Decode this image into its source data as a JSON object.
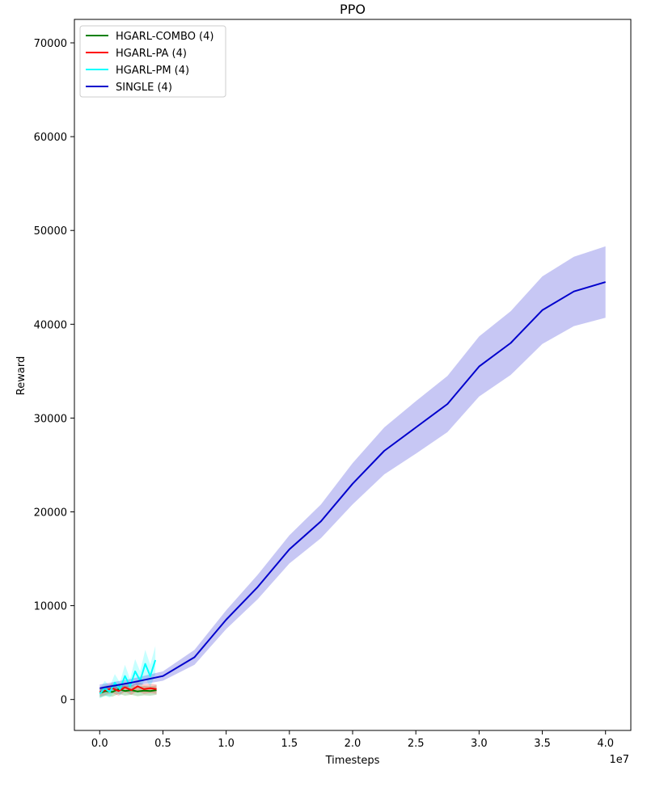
{
  "chart_data": {
    "type": "line",
    "title": "PPO",
    "xlabel": "Timesteps",
    "ylabel": "Reward",
    "x_offset_label": "1e7",
    "xlim": [
      -0.2,
      4.2
    ],
    "ylim": [
      -3300,
      72500
    ],
    "x_ticks": [
      0.0,
      0.5,
      1.0,
      1.5,
      2.0,
      2.5,
      3.0,
      3.5,
      4.0
    ],
    "x_tick_labels": [
      "0.0",
      "0.5",
      "1.0",
      "1.5",
      "2.0",
      "2.5",
      "3.0",
      "3.5",
      "4.0"
    ],
    "y_ticks": [
      0,
      10000,
      20000,
      30000,
      40000,
      50000,
      60000,
      70000
    ],
    "y_tick_labels": [
      "0",
      "10000",
      "20000",
      "30000",
      "40000",
      "50000",
      "60000",
      "70000"
    ],
    "legend_position": "top-left",
    "grid": false,
    "series": [
      {
        "name": "HGARL-COMBO (4)",
        "color": "#008000",
        "x": [
          0.0,
          0.05,
          0.1,
          0.15,
          0.2,
          0.25,
          0.3,
          0.35,
          0.4,
          0.45
        ],
        "y": [
          700,
          900,
          800,
          1100,
          900,
          1000,
          850,
          950,
          900,
          1000
        ],
        "band": [
          500,
          500,
          500,
          500,
          500,
          500,
          500,
          500,
          500,
          500
        ]
      },
      {
        "name": "HGARL-PA (4)",
        "color": "#ff0000",
        "x": [
          0.0,
          0.05,
          0.1,
          0.15,
          0.2,
          0.25,
          0.3,
          0.35,
          0.4,
          0.45
        ],
        "y": [
          800,
          1000,
          1200,
          900,
          1300,
          1000,
          1400,
          1100,
          1200,
          1100
        ],
        "band": [
          500,
          500,
          500,
          500,
          500,
          500,
          500,
          500,
          500,
          500
        ]
      },
      {
        "name": "HGARL-PM (4)",
        "color": "#00ffff",
        "x": [
          0.0,
          0.04,
          0.08,
          0.12,
          0.16,
          0.2,
          0.24,
          0.28,
          0.32,
          0.36,
          0.4,
          0.44
        ],
        "y": [
          600,
          1200,
          800,
          1800,
          1100,
          2500,
          1400,
          3000,
          2000,
          3800,
          2500,
          4200
        ],
        "band": [
          500,
          800,
          600,
          900,
          700,
          1200,
          800,
          1300,
          1000,
          1500,
          1200,
          1500
        ]
      },
      {
        "name": "SINGLE (4)",
        "color": "#0000cc",
        "x": [
          0.0,
          0.25,
          0.5,
          0.75,
          1.0,
          1.25,
          1.5,
          1.75,
          2.0,
          2.25,
          2.5,
          2.75,
          3.0,
          3.25,
          3.5,
          3.75,
          4.0
        ],
        "y": [
          1200,
          1800,
          2500,
          4500,
          8500,
          12000,
          16000,
          19000,
          23000,
          26500,
          29000,
          31500,
          35500,
          38000,
          41500,
          43500,
          44500
        ],
        "band": [
          400,
          400,
          500,
          800,
          1000,
          1300,
          1500,
          1800,
          2200,
          2500,
          2800,
          3000,
          3200,
          3400,
          3600,
          3700,
          3800
        ]
      }
    ]
  }
}
